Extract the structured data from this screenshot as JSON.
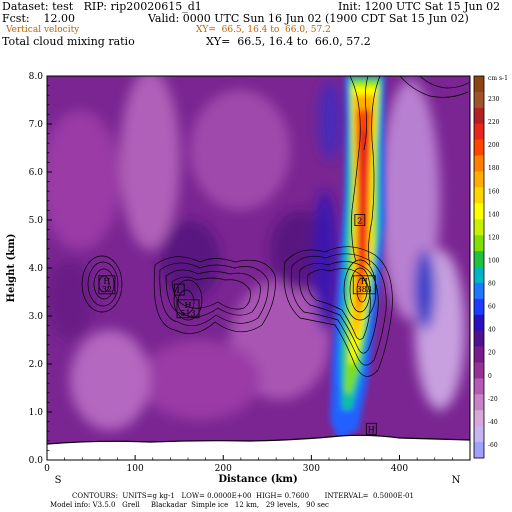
{
  "header": {
    "dataset": "Dataset: test   RIP: rip20020615_d1",
    "init": "Init: 1200 UTC Sat 15 Jun 02",
    "fcst": "Fcst:    12.00",
    "valid": "Valid: 0000 UTC Sun 16 Jun 02 (1900 CDT Sat 15 Jun 02)",
    "var1": "Vertical velocity",
    "xy1": "XY=  66.5, 16.4 to  66.0, 57.2",
    "var2": "Total cloud mixing ratio",
    "xy2": "XY=  66.5, 16.4 to  66.0, 57.2"
  },
  "chart_data": {
    "type": "heatmap",
    "xlabel": "Distance (km)",
    "ylabel": "Height (km)",
    "xlim": [
      0,
      480
    ],
    "ylim": [
      0,
      8
    ],
    "x_ticks": [
      0,
      100,
      200,
      300,
      400
    ],
    "y_ticks": [
      "0.0",
      "1.0",
      "2.0",
      "3.0",
      "4.0",
      "5.0",
      "6.0",
      "7.0",
      "8.0"
    ],
    "x_end_labels": {
      "left": "S",
      "right": "N"
    },
    "colorbar": {
      "unit": "cm s-1",
      "labels": [
        "230",
        "220",
        "200",
        "180",
        "160",
        "140",
        "120",
        "100",
        "80",
        "60",
        "40",
        "20",
        "0",
        "-20",
        "-40",
        "-60"
      ],
      "colors": [
        "#8b4513",
        "#a0522d",
        "#b22222",
        "#e8261c",
        "#ff4500",
        "#ff7f00",
        "#ffae00",
        "#ffd700",
        "#ffff00",
        "#c8f000",
        "#7fe000",
        "#20c040",
        "#00b4c8",
        "#1e78ff",
        "#1e3cff",
        "#2810c0",
        "#501090",
        "#781a8c",
        "#963296",
        "#b45ab4",
        "#c882c8",
        "#d8a8dc",
        "#c8b4f0",
        "#a0a0ff"
      ]
    },
    "markers": [
      {
        "label": "H",
        "value": "32",
        "x": 68,
        "y": 3.65
      },
      {
        "label": "L",
        "value": "",
        "x": 150,
        "y": 3.55
      },
      {
        "label": "H",
        "value": "513",
        "x": 160,
        "y": 3.15
      },
      {
        "label": "H",
        "value": "383",
        "x": 360,
        "y": 3.65
      },
      {
        "label": "2",
        "value": "",
        "x": 355,
        "y": 5.0
      },
      {
        "label": "H",
        "value": "",
        "x": 368,
        "y": 0.65
      }
    ]
  },
  "footer": {
    "contours": "CONTOURS:  UNITS=g kg-1   LOW= 0.0000E+00  HIGH= 0.7600       INTERVAL=  0.5000E-01",
    "model": "Model info: V3.5.0   Grell     Blackadar  Simple ice   12 km,   29 levels,   90 sec"
  }
}
